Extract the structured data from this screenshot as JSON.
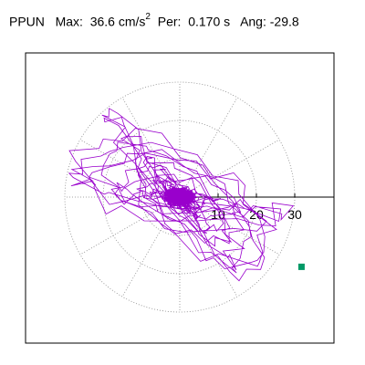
{
  "header": {
    "station": "PPUN",
    "max_label": "Max:",
    "max_value": "36.6 cm/s",
    "max_exp": "2",
    "per_label": "Per:",
    "per_value": "0.170 s",
    "ang_label": "Ang:",
    "ang_value": "-29.8"
  },
  "chart_data": {
    "type": "polar-scatter",
    "radial_ticks": [
      "10",
      "20",
      "30"
    ],
    "radial_max": 30,
    "max_amplitude": 36.6,
    "angle_deg": -29.8,
    "trace_color": "#9900cc",
    "marker_color": "#009966",
    "grid": true
  }
}
